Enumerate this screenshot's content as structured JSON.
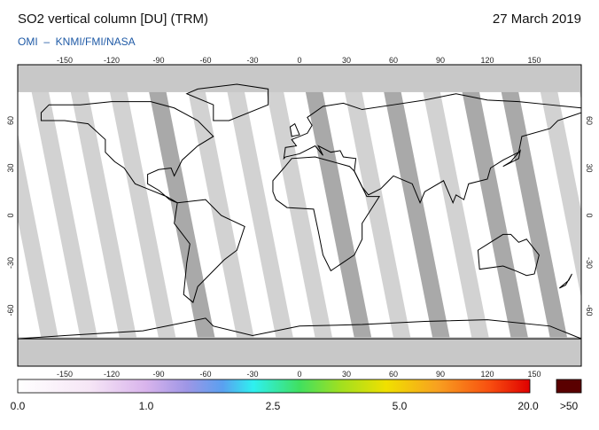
{
  "header": {
    "title": "SO2 vertical column [DU] (TRM)",
    "date": "27 March 2019",
    "credit": "OMI  –  KNMI/FMI/NASA"
  },
  "map": {
    "lon_ticks": [
      "-150",
      "-120",
      "-90",
      "-60",
      "-30",
      "0",
      "30",
      "60",
      "90",
      "120",
      "150"
    ],
    "lat_ticks": [
      "60",
      "30",
      "0",
      "-30",
      "-60"
    ]
  },
  "colorbar": {
    "labels": [
      "0.0",
      "1.0",
      "2.5",
      "5.0",
      "20.0"
    ],
    "overflow": ">50"
  }
}
